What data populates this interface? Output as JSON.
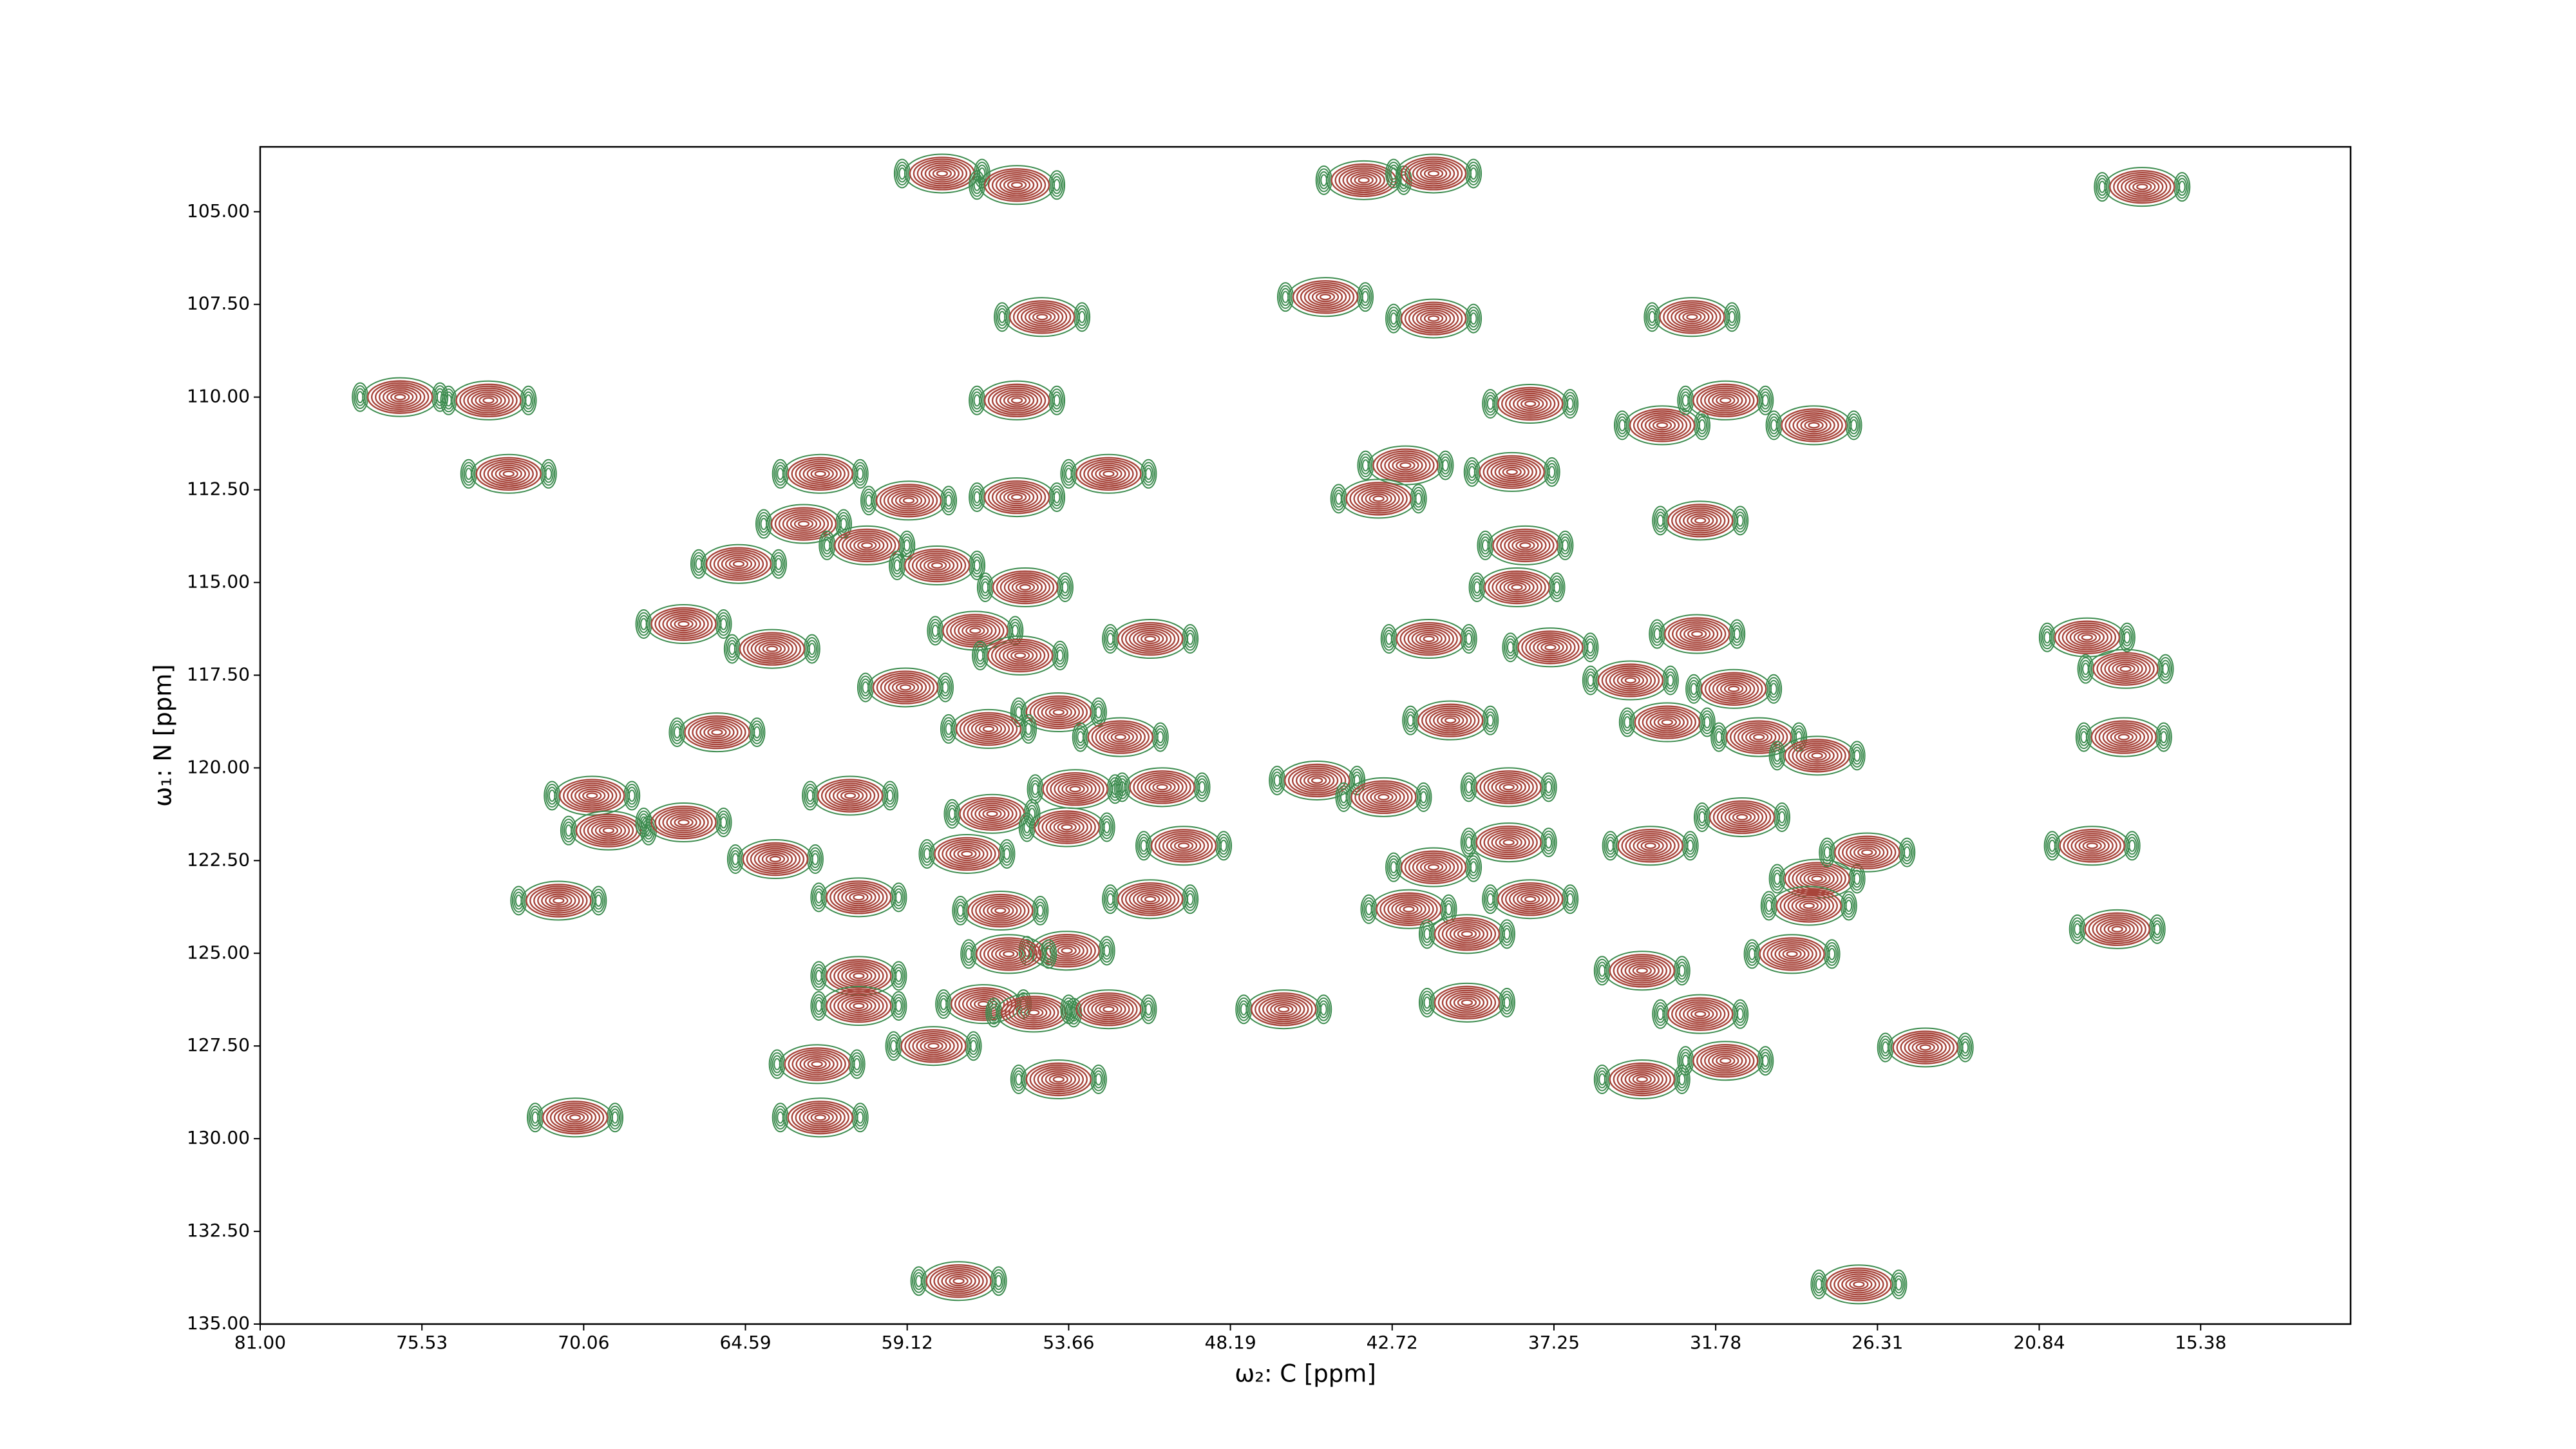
{
  "chart_data": {
    "type": "contour",
    "x_label": "ω₂: C [ppm]",
    "y_label": "ω₁: N [ppm]",
    "color": "#a8453b",
    "negative_color": "#3d8c4f",
    "xlim": [
      81,
      10.31
    ],
    "ylim": [
      135,
      103.25
    ],
    "xticks": [
      {
        "value": 81,
        "label": "81.00"
      },
      {
        "value": 75.53,
        "label": "75.53"
      },
      {
        "value": 70.06,
        "label": "70.06"
      },
      {
        "value": 64.59,
        "label": "64.59"
      },
      {
        "value": 59.12,
        "label": "59.12"
      },
      {
        "value": 53.66,
        "label": "53.66"
      },
      {
        "value": 48.19,
        "label": "48.19"
      },
      {
        "value": 42.72,
        "label": "42.72"
      },
      {
        "value": 37.25,
        "label": "37.25"
      },
      {
        "value": 31.78,
        "label": "31.78"
      },
      {
        "value": 26.31,
        "label": "26.31"
      },
      {
        "value": 20.84,
        "label": "20.84"
      },
      {
        "value": 15.38,
        "label": "15.38"
      }
    ],
    "yticks": [
      {
        "value": 105,
        "label": "105.00"
      },
      {
        "value": 107.5,
        "label": "107.50"
      },
      {
        "value": 110,
        "label": "110.00"
      },
      {
        "value": 112.5,
        "label": "112.50"
      },
      {
        "value": 115,
        "label": "115.00"
      },
      {
        "value": 117.5,
        "label": "117.50"
      },
      {
        "value": 120,
        "label": "120.00"
      },
      {
        "value": 122.5,
        "label": "122.50"
      },
      {
        "value": 125,
        "label": "125.00"
      },
      {
        "value": 127.5,
        "label": "127.50"
      },
      {
        "value": 130,
        "label": "130.00"
      },
      {
        "value": 132.5,
        "label": "132.50"
      },
      {
        "value": 135,
        "label": "135.00"
      }
    ],
    "x": [
      57.94,
      55.41,
      43.68,
      41.32,
      17.36,
      54.56,
      44.98,
      41.32,
      32.58,
      76.27,
      73.28,
      55.41,
      38.05,
      33.59,
      31.45,
      28.46,
      72.6,
      62.06,
      59.07,
      55.41,
      52.31,
      42.27,
      43.18,
      38.67,
      32.3,
      62.62,
      60.48,
      58.11,
      64.82,
      55.13,
      38.5,
      38.22,
      66.68,
      63.69,
      56.82,
      55.3,
      50.9,
      41.48,
      37.37,
      32.41,
      34.66,
      31.17,
      19.22,
      17.92,
      33.42,
      59.18,
      54.0,
      56.37,
      51.91,
      40.75,
      65.55,
      30.32,
      28.35,
      17.98,
      69.78,
      69.22,
      66.68,
      61.05,
      53.44,
      50.5,
      45.26,
      43.01,
      38.78,
      63.58,
      56.25,
      53.72,
      49.77,
      57.1,
      41.32,
      38.78,
      33.99,
      30.89,
      28.35,
      26.66,
      19.05,
      70.91,
      60.76,
      55.97,
      50.9,
      42.16,
      38.05,
      28.63,
      53.72,
      40.19,
      18.2,
      29.2,
      60.76,
      55.69,
      34.27,
      56.54,
      54.84,
      52.31,
      46.39,
      40.19,
      32.3,
      60.76,
      62.17,
      58.23,
      31.45,
      34.27,
      24.69,
      54.0,
      62.06,
      70.35,
      57.38,
      26.94
    ],
    "values": [
      103.97,
      104.28,
      104.15,
      103.97,
      104.33,
      107.84,
      107.3,
      107.88,
      107.84,
      110.0,
      110.09,
      110.09,
      110.18,
      110.76,
      110.09,
      110.76,
      112.07,
      112.07,
      112.79,
      112.7,
      112.07,
      111.84,
      112.74,
      112.02,
      113.33,
      113.42,
      114.0,
      114.54,
      114.5,
      115.13,
      115.13,
      114.0,
      116.12,
      116.79,
      116.3,
      116.97,
      116.52,
      116.52,
      116.75,
      116.39,
      117.64,
      117.87,
      116.48,
      117.33,
      118.77,
      117.83,
      118.5,
      118.95,
      119.17,
      118.72,
      119.04,
      119.17,
      119.67,
      119.17,
      120.75,
      121.69,
      121.47,
      120.75,
      120.57,
      120.52,
      120.34,
      120.79,
      120.52,
      122.46,
      121.24,
      121.6,
      122.1,
      122.32,
      122.68,
      122.01,
      122.1,
      121.33,
      122.99,
      122.28,
      122.1,
      123.58,
      123.49,
      123.85,
      123.54,
      123.81,
      123.54,
      123.72,
      124.93,
      124.48,
      124.35,
      125.02,
      125.61,
      125.02,
      125.47,
      126.37,
      126.6,
      126.51,
      126.51,
      126.33,
      126.64,
      126.42,
      127.99,
      127.5,
      127.9,
      128.4,
      127.54,
      128.4,
      129.43,
      129.43,
      133.84,
      133.93
    ]
  }
}
